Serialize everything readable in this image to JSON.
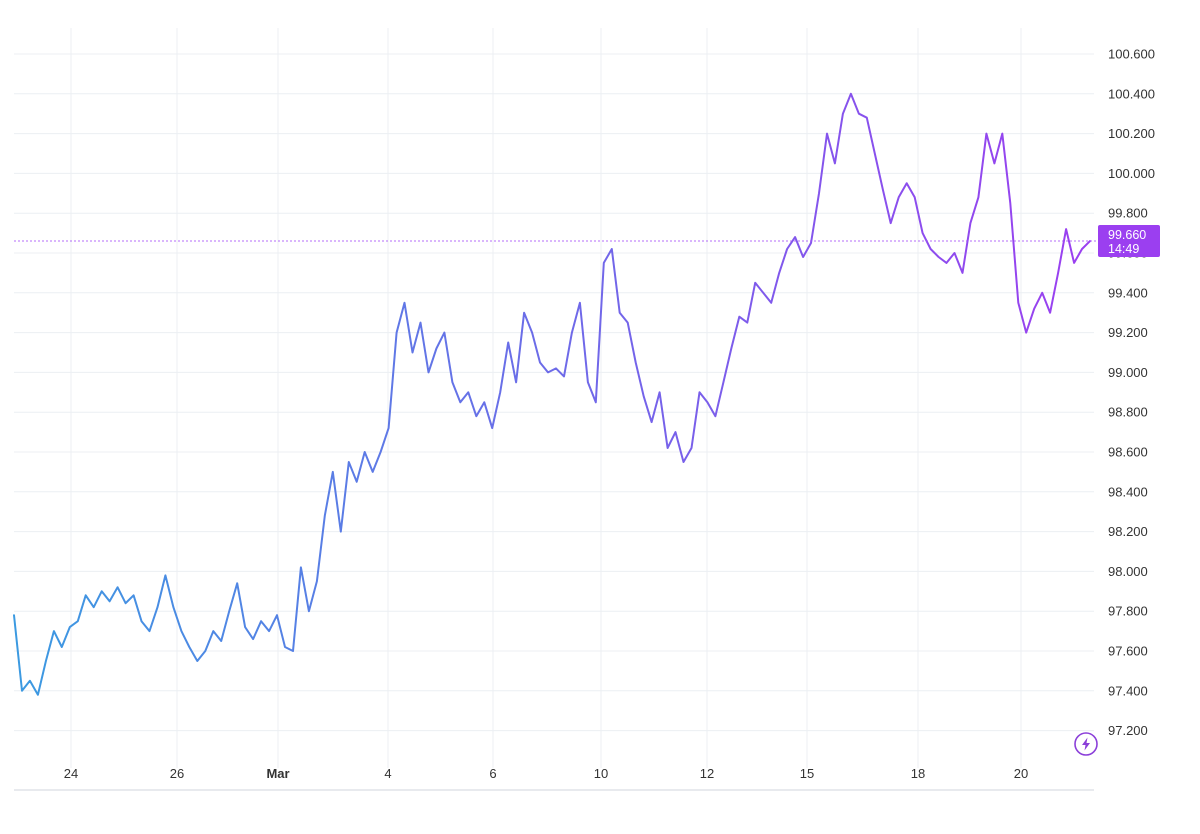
{
  "chart_data": {
    "type": "line",
    "title": "",
    "xlabel": "",
    "ylabel": "",
    "x_ticks": [
      {
        "label": "24",
        "bold": false
      },
      {
        "label": "26",
        "bold": false
      },
      {
        "label": "Mar",
        "bold": true
      },
      {
        "label": "4",
        "bold": false
      },
      {
        "label": "6",
        "bold": false
      },
      {
        "label": "10",
        "bold": false
      },
      {
        "label": "12",
        "bold": false
      },
      {
        "label": "15",
        "bold": false
      },
      {
        "label": "18",
        "bold": false
      },
      {
        "label": "20",
        "bold": false
      }
    ],
    "y_ticks": [
      "100.600",
      "100.400",
      "100.200",
      "100.000",
      "99.800",
      "99.600",
      "99.400",
      "99.200",
      "99.000",
      "98.800",
      "98.600",
      "98.400",
      "98.200",
      "98.000",
      "97.800",
      "97.600",
      "97.400",
      "97.200"
    ],
    "ylim": [
      97.0,
      100.7
    ],
    "grid": true,
    "last_price": {
      "value": "99.660",
      "time": "14:49"
    },
    "colors": {
      "start": "#3b9ae1",
      "end": "#9b3ff0",
      "tag": "#9b3ff0"
    },
    "series": [
      {
        "points": [
          [
            0,
            97.78
          ],
          [
            0.2,
            97.4
          ],
          [
            0.4,
            97.45
          ],
          [
            0.6,
            97.38
          ],
          [
            0.8,
            97.55
          ],
          [
            1.0,
            97.7
          ],
          [
            1.2,
            97.62
          ],
          [
            1.4,
            97.72
          ],
          [
            1.6,
            97.75
          ],
          [
            1.8,
            97.88
          ],
          [
            2.0,
            97.82
          ],
          [
            2.2,
            97.9
          ],
          [
            2.4,
            97.85
          ],
          [
            2.6,
            97.92
          ],
          [
            2.8,
            97.84
          ],
          [
            3.0,
            97.88
          ],
          [
            3.2,
            97.75
          ],
          [
            3.4,
            97.7
          ],
          [
            3.6,
            97.82
          ],
          [
            3.8,
            97.98
          ],
          [
            4.0,
            97.82
          ],
          [
            4.2,
            97.7
          ],
          [
            4.4,
            97.62
          ],
          [
            4.6,
            97.55
          ],
          [
            4.8,
            97.6
          ],
          [
            5.0,
            97.7
          ],
          [
            5.2,
            97.65
          ],
          [
            5.4,
            97.8
          ],
          [
            5.6,
            97.94
          ],
          [
            5.8,
            97.72
          ],
          [
            6.0,
            97.66
          ],
          [
            6.2,
            97.75
          ],
          [
            6.4,
            97.7
          ],
          [
            6.6,
            97.78
          ],
          [
            6.8,
            97.62
          ],
          [
            7.0,
            97.6
          ],
          [
            7.2,
            98.02
          ],
          [
            7.4,
            97.8
          ],
          [
            7.6,
            97.95
          ],
          [
            7.8,
            98.28
          ],
          [
            8.0,
            98.5
          ],
          [
            8.2,
            98.2
          ],
          [
            8.4,
            98.55
          ],
          [
            8.6,
            98.45
          ],
          [
            8.8,
            98.6
          ],
          [
            9.0,
            98.5
          ],
          [
            9.2,
            98.6
          ],
          [
            9.4,
            98.72
          ],
          [
            9.6,
            99.2
          ],
          [
            9.8,
            99.35
          ],
          [
            10.0,
            99.1
          ],
          [
            10.2,
            99.25
          ],
          [
            10.4,
            99.0
          ],
          [
            10.6,
            99.12
          ],
          [
            10.8,
            99.2
          ],
          [
            11.0,
            98.95
          ],
          [
            11.2,
            98.85
          ],
          [
            11.4,
            98.9
          ],
          [
            11.6,
            98.78
          ],
          [
            11.8,
            98.85
          ],
          [
            12.0,
            98.72
          ],
          [
            12.2,
            98.9
          ],
          [
            12.4,
            99.15
          ],
          [
            12.6,
            98.95
          ],
          [
            12.8,
            99.3
          ],
          [
            13.0,
            99.2
          ],
          [
            13.2,
            99.05
          ],
          [
            13.4,
            99.0
          ],
          [
            13.6,
            99.02
          ],
          [
            13.8,
            98.98
          ],
          [
            14.0,
            99.2
          ],
          [
            14.2,
            99.35
          ],
          [
            14.4,
            98.95
          ],
          [
            14.6,
            98.85
          ],
          [
            14.8,
            99.55
          ],
          [
            15.0,
            99.62
          ],
          [
            15.2,
            99.3
          ],
          [
            15.4,
            99.25
          ],
          [
            15.6,
            99.05
          ],
          [
            15.8,
            98.88
          ],
          [
            16.0,
            98.75
          ],
          [
            16.2,
            98.9
          ],
          [
            16.4,
            98.62
          ],
          [
            16.6,
            98.7
          ],
          [
            16.8,
            98.55
          ],
          [
            17.0,
            98.62
          ],
          [
            17.2,
            98.9
          ],
          [
            17.4,
            98.85
          ],
          [
            17.6,
            98.78
          ],
          [
            17.8,
            98.95
          ],
          [
            18.0,
            99.12
          ],
          [
            18.2,
            99.28
          ],
          [
            18.4,
            99.25
          ],
          [
            18.6,
            99.45
          ],
          [
            18.8,
            99.4
          ],
          [
            19.0,
            99.35
          ],
          [
            19.2,
            99.5
          ],
          [
            19.4,
            99.62
          ],
          [
            19.6,
            99.68
          ],
          [
            19.8,
            99.58
          ],
          [
            20.0,
            99.65
          ],
          [
            20.2,
            99.9
          ],
          [
            20.4,
            100.2
          ],
          [
            20.6,
            100.05
          ],
          [
            20.8,
            100.3
          ],
          [
            21.0,
            100.4
          ],
          [
            21.2,
            100.3
          ],
          [
            21.4,
            100.28
          ],
          [
            21.6,
            100.1
          ],
          [
            21.8,
            99.92
          ],
          [
            22.0,
            99.75
          ],
          [
            22.2,
            99.88
          ],
          [
            22.4,
            99.95
          ],
          [
            22.6,
            99.88
          ],
          [
            22.8,
            99.7
          ],
          [
            23.0,
            99.62
          ],
          [
            23.2,
            99.58
          ],
          [
            23.4,
            99.55
          ],
          [
            23.6,
            99.6
          ],
          [
            23.8,
            99.5
          ],
          [
            24.0,
            99.75
          ],
          [
            24.2,
            99.88
          ],
          [
            24.4,
            100.2
          ],
          [
            24.6,
            100.05
          ],
          [
            24.8,
            100.2
          ],
          [
            25.0,
            99.85
          ],
          [
            25.2,
            99.35
          ],
          [
            25.4,
            99.2
          ],
          [
            25.6,
            99.32
          ],
          [
            25.8,
            99.4
          ],
          [
            26.0,
            99.3
          ],
          [
            26.2,
            99.5
          ],
          [
            26.4,
            99.72
          ],
          [
            26.6,
            99.55
          ],
          [
            26.8,
            99.62
          ],
          [
            27.0,
            99.66
          ]
        ]
      }
    ]
  }
}
